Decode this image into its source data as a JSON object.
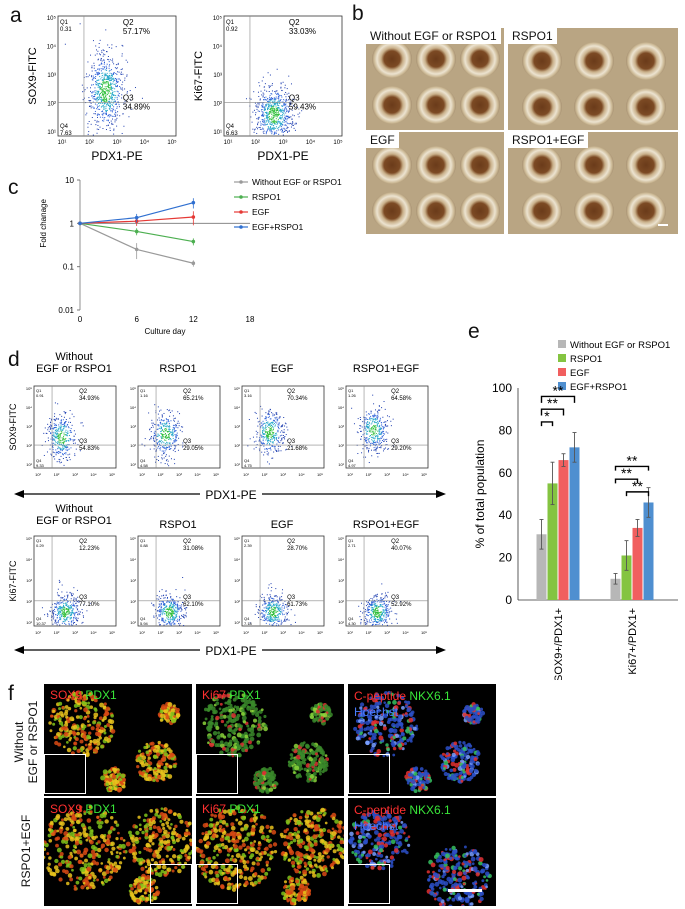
{
  "panels": {
    "a": "a",
    "b": "b",
    "c": "c",
    "d": "d",
    "e": "e",
    "f": "f"
  },
  "panel_a": {
    "plot1": {
      "ylabel": "SOX9-FITC",
      "xlabel": "PDX1-PE",
      "q1": "Q1\n0.31",
      "q2": "Q2\n57.17%",
      "q3": "Q3\n34.89%",
      "q4": "Q4\n7.63"
    },
    "plot2": {
      "ylabel": "Ki67-FITC",
      "xlabel": "PDX1-PE",
      "q1": "Q1\n0.92",
      "q2": "Q2\n33.03%",
      "q3": "Q3\n59.43%",
      "q4": "Q4\n6.63"
    }
  },
  "panel_b": {
    "labels": [
      "Without EGF or RSPO1",
      "RSPO1",
      "EGF",
      "RSPO1+EGF"
    ]
  },
  "panel_c": {
    "ylabel": "Fold chanage",
    "xlabel": "Culture day",
    "yticks": [
      "10",
      "1",
      "0.1",
      "0.01"
    ],
    "xticks": [
      "0",
      "6",
      "12",
      "18"
    ],
    "legend": [
      "Without EGF or RSPO1",
      "RSPO1",
      "EGF",
      "EGF+RSPO1"
    ]
  },
  "panel_d": {
    "row1_ylabel": "SOX9-FITC",
    "row2_ylabel": "Ki67-FITC",
    "xlabel": "PDX1-PE",
    "titles": [
      "Without\nEGF or RSPO1",
      "RSPO1",
      "EGF",
      "RSPO1+EGF"
    ],
    "row2_titles": [
      "Without\nEGF or RSPO1",
      "RSPO1",
      "EGF",
      "RSPO1+EGF"
    ],
    "row1": [
      {
        "q1": "Q1\n0.91",
        "q2": "Q2\n34.93%",
        "q3": "Q3\n54.83%",
        "q4": "Q4\n9.33"
      },
      {
        "q1": "Q1\n1.16",
        "q2": "Q2\n65.21%",
        "q3": "Q3\n29.05%",
        "q4": "Q4\n4.58"
      },
      {
        "q1": "Q1\n3.16",
        "q2": "Q2\n70.34%",
        "q3": "Q3\n21.68%",
        "q4": "Q4\n4.75"
      },
      {
        "q1": "Q1\n1.26",
        "q2": "Q2\n64.58%",
        "q3": "Q3\n29.20%",
        "q4": "Q4\n4.97"
      }
    ],
    "row2": [
      {
        "q1": "Q1\n0.29",
        "q2": "Q2\n12.23%",
        "q3": "Q3\n77.10%",
        "q4": "Q4\n10.37"
      },
      {
        "q1": "Q1\n0.88",
        "q2": "Q2\n31.08%",
        "q3": "Q3\n62.10%",
        "q4": "Q4\n5.94"
      },
      {
        "q1": "Q1\n2.39",
        "q2": "Q2\n28.70%",
        "q3": "Q3\n61.73%",
        "q4": "Q4\n7.18"
      },
      {
        "q1": "Q1\n2.71",
        "q2": "Q2\n40.07%",
        "q3": "Q3\n52.92%",
        "q4": "Q4\n4.30"
      }
    ]
  },
  "panel_e": {
    "ylabel": "% of total  population",
    "yticks": [
      "0",
      "20",
      "40",
      "60",
      "80",
      "100"
    ],
    "categories": [
      "SOX9+/PDX1+",
      "Ki67+/PDX1+"
    ],
    "legend": [
      "Without EGF or RSPO1",
      "RSPO1",
      "EGF",
      "EGF+RSPO1"
    ],
    "sig": [
      "*",
      "**",
      "**",
      "**",
      "**",
      "**"
    ]
  },
  "panel_f": {
    "row_labels": [
      "Without\nEGF or RSPO1",
      "RSPO1+EGF"
    ],
    "stains": [
      {
        "red": "SOX9",
        "green": "PDX1"
      },
      {
        "red": "Ki67",
        "green": "PDX1"
      },
      {
        "red": "C-peptide",
        "green": "NKX6.1",
        "blue": "Hoechst"
      }
    ]
  },
  "colors": {
    "gray": "#b7b7b7",
    "green": "#84c441",
    "red": "#f15f5f",
    "blue": "#4f8fd0",
    "line_gray": "#9a9a9a",
    "line_green": "#4caf50",
    "line_red": "#e53935",
    "line_blue": "#2f6fd0"
  },
  "chart_data": [
    {
      "type": "line",
      "x": [
        0,
        6,
        12
      ],
      "xlabel": "Culture day",
      "ylabel": "Fold chanage",
      "yscale": "log",
      "ylim": [
        0.01,
        10
      ],
      "xlim": [
        0,
        18
      ],
      "series": [
        {
          "name": "Without EGF or RSPO1",
          "values": [
            1,
            0.25,
            0.12
          ],
          "err": [
            0,
            0.1,
            0.02
          ]
        },
        {
          "name": "RSPO1",
          "values": [
            1,
            0.65,
            0.38
          ],
          "err": [
            0,
            0.12,
            0.07
          ]
        },
        {
          "name": "EGF",
          "values": [
            1,
            1.12,
            1.4
          ],
          "err": [
            0,
            0.25,
            0.5
          ]
        },
        {
          "name": "EGF+RSPO1",
          "values": [
            1,
            1.35,
            3.0
          ],
          "err": [
            0,
            0.3,
            0.8
          ]
        }
      ]
    },
    {
      "type": "bar",
      "categories": [
        "SOX9+/PDX1+",
        "Ki67+/PDX1+"
      ],
      "ylabel": "% of total  population",
      "ylim": [
        0,
        100
      ],
      "series": [
        {
          "name": "Without EGF or RSPO1",
          "values": [
            31,
            10
          ],
          "err": [
            7,
            2.5
          ]
        },
        {
          "name": "RSPO1",
          "values": [
            55,
            21
          ],
          "err": [
            10,
            7
          ]
        },
        {
          "name": "EGF",
          "values": [
            66,
            34
          ],
          "err": [
            3,
            4
          ]
        },
        {
          "name": "EGF+RSPO1",
          "values": [
            72,
            46
          ],
          "err": [
            7,
            7
          ]
        }
      ]
    }
  ]
}
